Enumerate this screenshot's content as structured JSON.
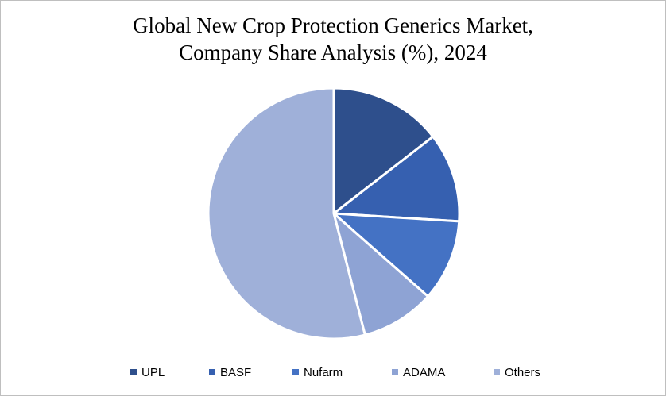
{
  "chart_data": {
    "type": "pie",
    "title_lines": [
      "Global New Crop Protection Generics Market,",
      "Company Share Analysis (%), 2024"
    ],
    "categories": [
      "UPL",
      "BASF",
      "Nufarm",
      "ADAMA",
      "Others"
    ],
    "values": [
      14.5,
      11.5,
      10.5,
      9.5,
      54.0
    ],
    "colors": [
      "#2e4f8c",
      "#3660b0",
      "#4472c4",
      "#8ea3d4",
      "#9fb0d9"
    ],
    "start_angle_deg": 0,
    "direction": "clockwise",
    "legend_position": "bottom"
  }
}
